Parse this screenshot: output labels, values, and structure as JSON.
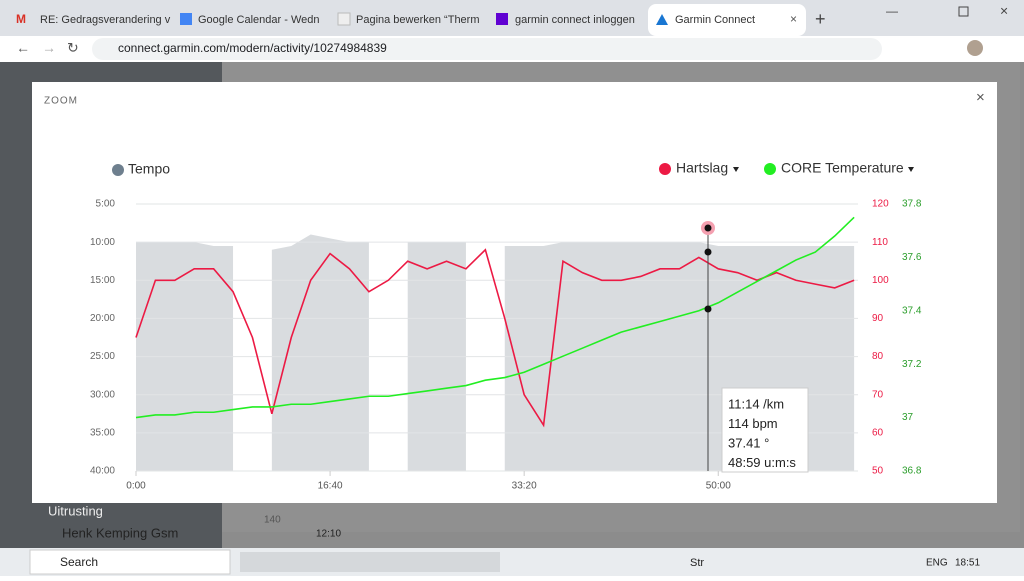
{
  "browser": {
    "tabs": [
      "RE: Gedragsverandering v",
      "Google Calendar - Wedn",
      "Pagina bewerken “Therm",
      "garmin connect inloggen",
      "Garmin Connect"
    ],
    "url": "connect.garmin.com/modern/activity/10274984839"
  },
  "background": {
    "menu_item": "Uitrusting",
    "contact": "Henk Kemping Gsm",
    "time": "12:10",
    "number": "140"
  },
  "modal": {
    "title": "ZOOM"
  },
  "chart_data": {
    "type": "line",
    "x": [
      0,
      100,
      200,
      300,
      400,
      500,
      600,
      700,
      800,
      900,
      1000,
      1100,
      1200,
      1300,
      1400,
      1500,
      1600,
      1700,
      1800,
      1900,
      2000,
      2100,
      2200,
      2300,
      2400,
      2500,
      2600,
      2700,
      2800,
      2900,
      3000,
      3100,
      3200,
      3300,
      3400,
      3500,
      3600,
      3700
    ],
    "xlim": [
      0,
      3720
    ],
    "xticks": [
      {
        "value": 0,
        "label": "0:00"
      },
      {
        "value": 1000,
        "label": "16:40"
      },
      {
        "value": 2000,
        "label": "33:20"
      },
      {
        "value": 3000,
        "label": "50:00"
      }
    ],
    "ylim": [
      40,
      5
    ],
    "yticks": [
      {
        "value": 5,
        "label": "5:00"
      },
      {
        "value": 10,
        "label": "10:00"
      },
      {
        "value": 15,
        "label": "15:00"
      },
      {
        "value": 20,
        "label": "20:00"
      },
      {
        "value": 25,
        "label": "25:00"
      },
      {
        "value": 30,
        "label": "30:00"
      },
      {
        "value": 35,
        "label": "35:00"
      },
      {
        "value": 40,
        "label": "40:00"
      }
    ],
    "y2lim": [
      50,
      120
    ],
    "y2ticks": [
      120,
      110,
      100,
      90,
      80,
      70,
      60,
      50
    ],
    "y3lim": [
      36.8,
      37.8
    ],
    "y3ticks": [
      37.8,
      37.6,
      37.4,
      37.2,
      37,
      36.8
    ],
    "grid": true,
    "series": [
      {
        "name": "Tempo",
        "color": "#d9dcdf",
        "legend_color": "#6e7f8e",
        "axis": "y",
        "values": [
          10,
          10,
          10,
          10,
          10.5,
          10.5,
          null,
          11,
          10.5,
          9,
          9.5,
          10,
          10,
          null,
          10,
          10,
          10,
          10,
          null,
          10.5,
          10.5,
          10.5,
          10,
          10,
          10,
          10,
          10,
          10,
          10,
          10,
          10.5,
          10.5,
          10.5,
          10.5,
          10.5,
          10.5,
          10.5,
          10.5
        ]
      },
      {
        "name": "Hartslag",
        "color": "#ec1a44",
        "axis": "y2",
        "values": [
          85,
          100,
          100,
          103,
          103,
          97,
          85,
          65,
          85,
          100,
          107,
          103,
          97,
          100,
          105,
          103,
          105,
          103,
          108,
          90,
          70,
          62,
          105,
          102,
          100,
          100,
          101,
          103,
          103,
          106,
          103,
          102,
          100,
          102,
          100,
          99,
          98,
          100
        ]
      },
      {
        "name": "CORE Temperature",
        "color": "#22ee22",
        "axis": "y3",
        "values": [
          37.0,
          37.01,
          37.01,
          37.02,
          37.02,
          37.03,
          37.04,
          37.04,
          37.05,
          37.05,
          37.06,
          37.07,
          37.08,
          37.08,
          37.09,
          37.1,
          37.11,
          37.12,
          37.14,
          37.15,
          37.17,
          37.2,
          37.23,
          37.26,
          37.29,
          37.32,
          37.34,
          37.36,
          37.38,
          37.4,
          37.43,
          37.47,
          37.51,
          37.55,
          37.59,
          37.62,
          37.68,
          37.75
        ]
      }
    ],
    "tooltip": [
      "11:14 /km",
      "114 bpm",
      "37.41 °",
      "48:59 u:m:s"
    ]
  },
  "taskbar": {
    "search": "Search",
    "weather": "Str",
    "language": "ENG",
    "clock": "18:51"
  }
}
